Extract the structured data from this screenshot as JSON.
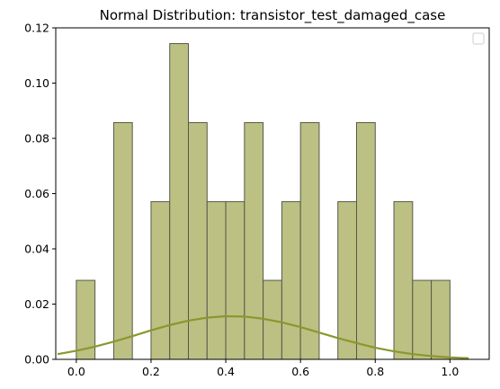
{
  "chart_data": {
    "type": "bar",
    "title": "Normal Distribution: transistor_test_damaged_case",
    "xlabel": "",
    "ylabel": "",
    "xlim": [
      -0.055,
      1.105
    ],
    "ylim": [
      0,
      0.12
    ],
    "x_ticks": [
      0.0,
      0.2,
      0.4,
      0.6,
      0.8,
      1.0
    ],
    "x_tick_labels": [
      "0.0",
      "0.2",
      "0.4",
      "0.6",
      "0.8",
      "1.0"
    ],
    "y_ticks": [
      0.0,
      0.02,
      0.04,
      0.06,
      0.08,
      0.1,
      0.12
    ],
    "y_tick_labels": [
      "0.00",
      "0.02",
      "0.04",
      "0.06",
      "0.08",
      "0.10",
      "0.12"
    ],
    "bin_edges": [
      0.0,
      0.05,
      0.1,
      0.15,
      0.2,
      0.25,
      0.3,
      0.35,
      0.4,
      0.45,
      0.5,
      0.55,
      0.6,
      0.65,
      0.7,
      0.75,
      0.8,
      0.85,
      0.9,
      0.95,
      1.0
    ],
    "values": [
      0.0286,
      0.0,
      0.0857,
      0.0,
      0.0571,
      0.1143,
      0.0857,
      0.0571,
      0.0571,
      0.0857,
      0.0286,
      0.0571,
      0.0857,
      0.0,
      0.0571,
      0.0857,
      0.0,
      0.0571,
      0.0286,
      0.0286
    ],
    "curve": {
      "type": "line",
      "x": [
        -0.05,
        0.0,
        0.05,
        0.1,
        0.15,
        0.2,
        0.25,
        0.3,
        0.35,
        0.4,
        0.45,
        0.5,
        0.55,
        0.6,
        0.65,
        0.7,
        0.75,
        0.8,
        0.85,
        0.9,
        0.95,
        1.0,
        1.05
      ],
      "y": [
        0.0019,
        0.0031,
        0.0046,
        0.0064,
        0.0084,
        0.0105,
        0.0124,
        0.014,
        0.0151,
        0.0156,
        0.0155,
        0.0147,
        0.0134,
        0.0117,
        0.0097,
        0.0077,
        0.0059,
        0.0042,
        0.0029,
        0.0019,
        0.0012,
        0.0007,
        0.0004
      ]
    },
    "colors": {
      "bar_fill": "#bcc082",
      "bar_edge": "#555a4a",
      "curve": "#8c962e"
    },
    "legend": "top-right",
    "grid": false
  }
}
